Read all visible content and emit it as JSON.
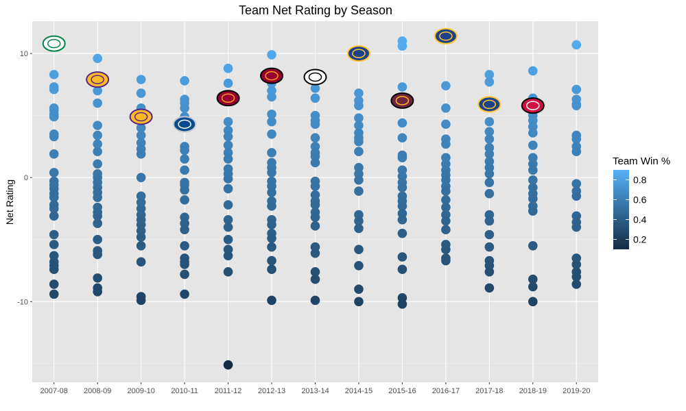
{
  "chart_data": {
    "type": "scatter",
    "title": "Team Net Rating by Season",
    "xlabel": "",
    "ylabel": "Net Rating",
    "ylim": [
      -16.5,
      12.6
    ],
    "yticks": [
      -10,
      0,
      10
    ],
    "grid": true,
    "legend": {
      "title": "Team Win %",
      "position": "right",
      "ticks": [
        0.2,
        0.4,
        0.6,
        0.8
      ],
      "color_low": "#132B43",
      "color_high": "#56B1F7"
    },
    "categories": [
      "2007-08",
      "2008-09",
      "2009-10",
      "2010-11",
      "2011-12",
      "2012-13",
      "2013-14",
      "2014-15",
      "2015-16",
      "2016-17",
      "2017-18",
      "2018-19",
      "2019-20"
    ],
    "seasons": [
      {
        "season": "2007-08",
        "logo": "BOS",
        "top": 10.8,
        "values": [
          8.3,
          7.3,
          7.1,
          5.6,
          5.4,
          5.1,
          4.9,
          3.5,
          3.3,
          1.9,
          0.4,
          -0.3,
          -0.6,
          -0.9,
          -1.3,
          -1.6,
          -2.2,
          -2.5,
          -3.1,
          -4.6,
          -5.4,
          -6.3,
          -6.8,
          -7.1,
          -7.4,
          -8.6,
          -9.4
        ]
      },
      {
        "season": "2008-09",
        "logo": "LAL",
        "top": 7.9,
        "values": [
          9.6,
          7.0,
          6.0,
          4.2,
          3.4,
          2.7,
          2.1,
          1.1,
          0.3,
          0.0,
          -0.4,
          -0.8,
          -1.2,
          -1.6,
          -2.4,
          -2.8,
          -3.1,
          -3.7,
          -5.0,
          -5.9,
          -6.2,
          -8.1,
          -8.9,
          -9.2
        ]
      },
      {
        "season": "2009-10",
        "logo": "LAL",
        "top": 4.9,
        "values": [
          7.9,
          6.8,
          5.6,
          4.0,
          3.4,
          2.8,
          2.3,
          1.9,
          0.0,
          -1.5,
          -2.0,
          -2.5,
          -3.0,
          -3.4,
          -3.8,
          -4.3,
          -4.8,
          -5.5,
          -6.8,
          -9.6,
          -9.9
        ]
      },
      {
        "season": "2010-11",
        "logo": "DAL",
        "top": 4.3,
        "values": [
          7.8,
          6.3,
          6.0,
          5.6,
          4.9,
          4.4,
          2.5,
          2.2,
          1.5,
          0.6,
          -0.4,
          -0.6,
          -1.0,
          -1.8,
          -3.2,
          -3.7,
          -4.2,
          -5.5,
          -6.5,
          -6.8,
          -7.0,
          -7.8,
          -9.4
        ]
      },
      {
        "season": "2011-12",
        "logo": "MIA",
        "top": 6.4,
        "values": [
          8.8,
          7.6,
          4.5,
          3.8,
          3.3,
          2.6,
          2.0,
          1.5,
          0.7,
          0.3,
          -0.1,
          -0.9,
          -2.2,
          -3.4,
          -4.0,
          -5.0,
          -5.8,
          -6.3,
          -7.6,
          -15.1
        ]
      },
      {
        "season": "2012-13",
        "logo": "MIA",
        "top": 8.2,
        "values": [
          9.9,
          7.6,
          7.0,
          6.5,
          5.1,
          4.5,
          3.5,
          2.0,
          1.2,
          0.8,
          0.4,
          -0.3,
          -0.7,
          -1.2,
          -1.9,
          -2.3,
          -3.4,
          -3.8,
          -4.5,
          -4.9,
          -5.6,
          -6.7,
          -7.4,
          -9.9
        ]
      },
      {
        "season": "2013-14",
        "logo": "SAS",
        "top": 8.1,
        "values": [
          7.2,
          6.4,
          5.0,
          4.6,
          4.3,
          3.2,
          2.5,
          2.0,
          1.7,
          1.2,
          -0.3,
          -0.7,
          -1.4,
          -1.9,
          -2.2,
          -2.8,
          -3.2,
          -3.9,
          -5.6,
          -6.1,
          -7.6,
          -8.2,
          -9.9
        ]
      },
      {
        "season": "2014-15",
        "logo": "GSW",
        "top": 10.0,
        "values": [
          6.8,
          6.2,
          5.8,
          4.8,
          4.2,
          3.6,
          3.2,
          2.9,
          2.1,
          0.8,
          0.3,
          -0.2,
          -1.1,
          -3.0,
          -3.5,
          -4.1,
          -5.8,
          -7.1,
          -9.0,
          -10.0
        ]
      },
      {
        "season": "2015-16",
        "logo": "CLE",
        "top": 6.2,
        "values": [
          11.0,
          10.6,
          7.3,
          4.4,
          3.2,
          1.8,
          1.6,
          0.6,
          0.1,
          -0.4,
          -0.8,
          -1.5,
          -1.9,
          -2.3,
          -2.9,
          -3.4,
          -4.5,
          -6.4,
          -7.4,
          -9.7,
          -10.2
        ]
      },
      {
        "season": "2016-17",
        "logo": "GSW",
        "top": 11.4,
        "values": [
          7.4,
          5.6,
          4.3,
          3.1,
          2.7,
          1.6,
          1.1,
          0.6,
          0.2,
          -0.2,
          -0.7,
          -1.1,
          -1.8,
          -2.4,
          -3.0,
          -3.5,
          -4.2,
          -5.4,
          -5.8,
          -6.5,
          -6.7
        ]
      },
      {
        "season": "2017-18",
        "logo": "GSW",
        "top": 5.9,
        "values": [
          8.3,
          7.7,
          4.5,
          3.7,
          3.1,
          2.4,
          1.9,
          1.3,
          0.8,
          0.3,
          -0.4,
          -1.3,
          -3.0,
          -3.5,
          -4.6,
          -5.6,
          -6.7,
          -7.1,
          -7.6,
          -8.9
        ]
      },
      {
        "season": "2018-19",
        "logo": "TOR",
        "top": 5.8,
        "values": [
          8.6,
          6.4,
          5.0,
          4.6,
          4.1,
          3.6,
          2.6,
          1.6,
          1.1,
          0.6,
          -0.2,
          -0.8,
          -1.3,
          -1.7,
          -2.3,
          -2.7,
          -5.5,
          -8.2,
          -8.8,
          -10.0
        ]
      },
      {
        "season": "2019-20",
        "logo": "",
        "top": null,
        "values": [
          10.7,
          7.1,
          6.3,
          5.9,
          5.8,
          3.4,
          3.1,
          2.5,
          2.1,
          -0.5,
          -1.1,
          -1.5,
          -3.1,
          -3.6,
          -4.0,
          -6.5,
          -7.0,
          -7.6,
          -8.0,
          -8.6
        ]
      }
    ]
  }
}
